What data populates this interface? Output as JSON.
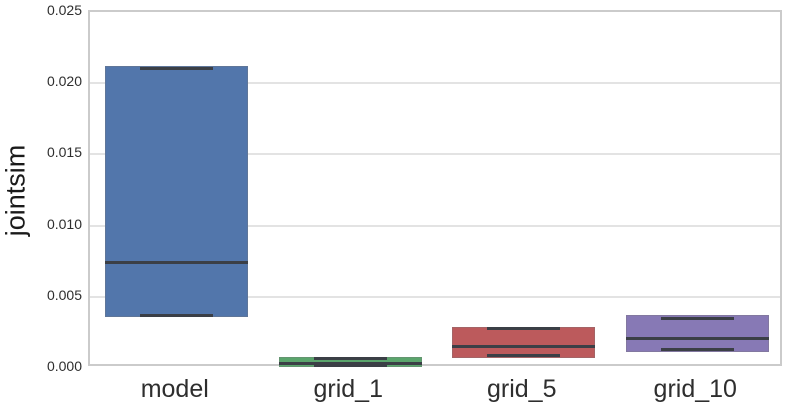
{
  "figure": {
    "background": "#ffffff"
  },
  "chart_data": {
    "type": "box",
    "title": "",
    "xlabel": "",
    "ylabel": "jointsim",
    "categories": [
      "model",
      "grid_1",
      "grid_5",
      "grid_10"
    ],
    "y_tick_labels": [
      "0.000",
      "0.005",
      "0.010",
      "0.015",
      "0.020",
      "0.025"
    ],
    "y_tick_values": [
      0.0,
      0.005,
      0.01,
      0.015,
      0.02,
      0.025
    ],
    "ylim": [
      0,
      0.025
    ],
    "grid": "horizontal-only",
    "legend": "none",
    "series": [
      {
        "name": "model",
        "color": "#5276ab",
        "q1": 0.0036,
        "median": 0.0074,
        "q3": 0.0212,
        "whisker_cap_low": 0.0037,
        "whisker_cap_high": 0.021
      },
      {
        "name": "grid_1",
        "color": "#5aa56c",
        "q1": 0.0001,
        "median": 0.0003,
        "q3": 0.0008,
        "whisker_cap_low": 0.0002,
        "whisker_cap_high": 0.0007
      },
      {
        "name": "grid_5",
        "color": "#bc5a5c",
        "q1": 0.0007,
        "median": 0.0015,
        "q3": 0.0029,
        "whisker_cap_low": 0.0009,
        "whisker_cap_high": 0.0028
      },
      {
        "name": "grid_10",
        "color": "#8779b5",
        "q1": 0.0011,
        "median": 0.0021,
        "q3": 0.0037,
        "whisker_cap_low": 0.0013,
        "whisker_cap_high": 0.0035
      }
    ],
    "colors": {
      "median_and_cap_line": "#3b3f46",
      "gridline": "#e3e3e3",
      "spine": "#cbcbcb",
      "tick_label_text": "#2e2e2e",
      "axis_label_text": "#1a1a1a"
    }
  }
}
